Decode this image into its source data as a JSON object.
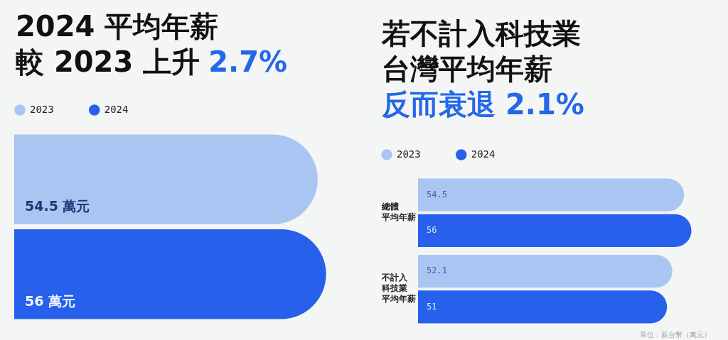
{
  "chart_data": [
    {
      "type": "bar",
      "orientation": "horizontal",
      "title": "2024 平均年薪較 2023 上升",
      "subtitle": "2.7%",
      "categories": [
        null
      ],
      "series": [
        {
          "name": "2023",
          "color": "#a9c6f2",
          "values": [
            54.5
          ],
          "value_labels": [
            "54.5 萬元"
          ]
        },
        {
          "name": "2024",
          "color": "#2760eb",
          "values": [
            56
          ],
          "value_labels": [
            "56 萬元"
          ]
        }
      ],
      "legend": "top left",
      "tick_labels": false
    },
    {
      "type": "bar",
      "orientation": "horizontal",
      "title": "若不計入科技業台灣平均年薪",
      "subtitle": "反而衰退 2.1%",
      "categories": [
        "總體平均年薪",
        "不計入科技業平均年薪"
      ],
      "series": [
        {
          "name": "2023",
          "color": "#a9c6f2",
          "values": [
            54.5,
            52.1
          ]
        },
        {
          "name": "2024",
          "color": "#2760eb",
          "values": [
            56,
            51
          ]
        }
      ],
      "data_labels": true,
      "legend": "top left",
      "tick_labels": "y",
      "annotations": [
        "單位：新台幣（萬元）"
      ]
    }
  ]
}
